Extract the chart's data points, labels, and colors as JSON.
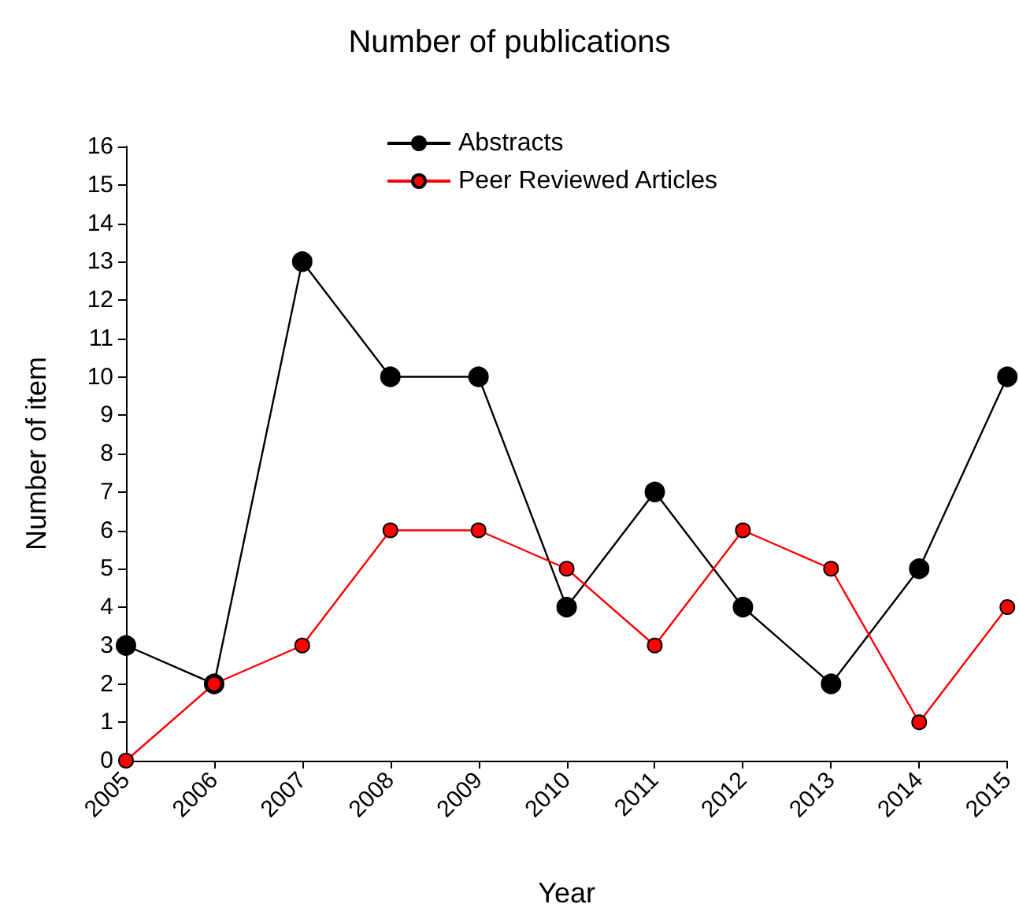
{
  "chart_data": {
    "type": "line",
    "title": "Number of publications",
    "xlabel": "Year",
    "ylabel": "Number of item",
    "x": [
      2005,
      2006,
      2007,
      2008,
      2009,
      2010,
      2011,
      2012,
      2013,
      2014,
      2015
    ],
    "series": [
      {
        "name": "Abstracts",
        "color": "#000000",
        "values": [
          3,
          2,
          13,
          10,
          10,
          4,
          7,
          4,
          2,
          5,
          10
        ]
      },
      {
        "name": "Peer Reviewed Articles",
        "color": "#ff0000",
        "values": [
          0,
          2,
          3,
          6,
          6,
          5,
          3,
          6,
          5,
          1,
          4
        ]
      }
    ],
    "xlim": [
      2005,
      2015
    ],
    "xticks": [
      2005,
      2006,
      2007,
      2008,
      2009,
      2010,
      2011,
      2012,
      2013,
      2014,
      2015
    ],
    "ylim": [
      0,
      16
    ],
    "yticks": [
      0,
      1,
      2,
      3,
      4,
      5,
      6,
      7,
      8,
      9,
      10,
      11,
      12,
      13,
      14,
      15,
      16
    ],
    "grid": false,
    "legend": "top",
    "marker": "circle",
    "line_style": "solid"
  }
}
